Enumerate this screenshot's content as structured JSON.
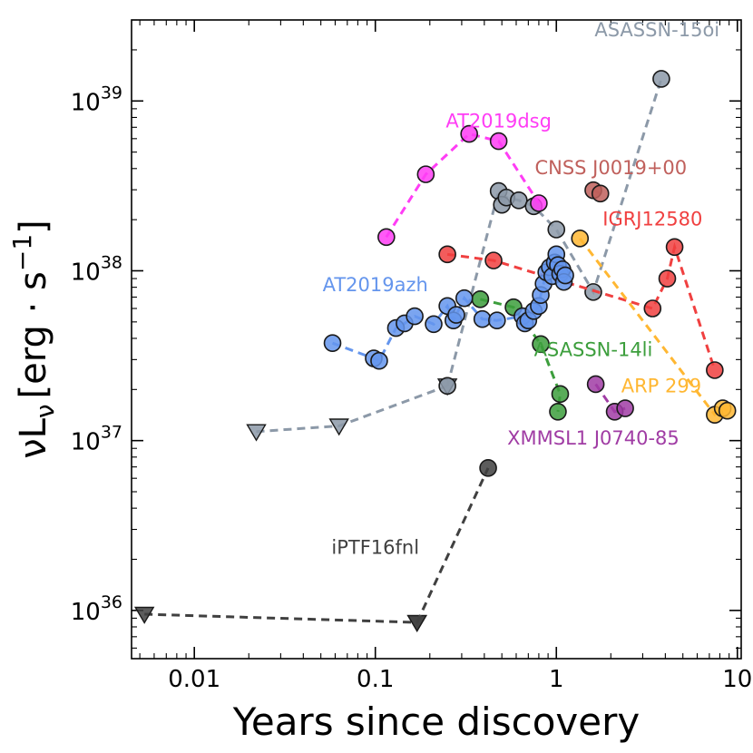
{
  "chart_data": {
    "type": "scatter",
    "xscale": "log",
    "yscale": "log",
    "xlim": [
      0.0045,
      10.5
    ],
    "ylim": [
      5.2e+35,
      3e+39
    ],
    "xlabel": "Years since discovery",
    "ylabel_text": "νL",
    "ylabel_sub": "ν",
    "ylabel_unit": "[erg · s",
    "ylabel_exp": "−1",
    "ylabel_close": "]",
    "x_ticks": [
      {
        "value": 0.01,
        "label": "0.01"
      },
      {
        "value": 0.1,
        "label": "0.1"
      },
      {
        "value": 1,
        "label": "1"
      },
      {
        "value": 10,
        "label": "10"
      }
    ],
    "y_ticks": [
      {
        "value": 1e+36,
        "base": "10",
        "exp": "36"
      },
      {
        "value": 1e+37,
        "base": "10",
        "exp": "37"
      },
      {
        "value": 1e+38,
        "base": "10",
        "exp": "38"
      },
      {
        "value": 1e+39,
        "base": "10",
        "exp": "39"
      }
    ],
    "series": [
      {
        "name": "ASASSN-15oi",
        "color": "#8c99a8",
        "label_anchor": [
          3.6,
          2.4e+39
        ],
        "segments": [
          {
            "marker": "triangle",
            "points": [
              [
                0.022,
                1.13e+37
              ],
              [
                0.063,
                1.22e+37
              ],
              [
                0.25,
                2.1e+37
              ]
            ]
          },
          {
            "marker": "circle",
            "points": [
              [
                0.25,
                2.1e+37
              ],
              [
                0.48,
                2.95e+38
              ],
              [
                0.5,
                2.45e+38
              ],
              [
                0.53,
                2.7e+38
              ],
              [
                0.62,
                2.6e+38
              ],
              [
                0.75,
                2.4e+38
              ],
              [
                1.0,
                1.75e+38
              ],
              [
                1.6,
                7.5e+37
              ],
              [
                3.8,
                1.35e+39
              ]
            ]
          }
        ]
      },
      {
        "name": "AT2019dsg",
        "color": "#ff3df5",
        "label_anchor": [
          0.48,
          7e+38
        ],
        "segments": [
          {
            "marker": "circle",
            "points": [
              [
                0.115,
                1.58e+38
              ],
              [
                0.19,
                3.7e+38
              ],
              [
                0.33,
                6.4e+38
              ],
              [
                0.48,
                5.8e+38
              ],
              [
                0.8,
                2.5e+38
              ]
            ]
          }
        ]
      },
      {
        "name": "CNSS J0019+00",
        "color": "#c0605c",
        "label_anchor": [
          2.0,
          3.7e+38
        ],
        "segments": [
          {
            "marker": "circle",
            "points": [
              [
                1.6,
                2.98e+38
              ],
              [
                1.75,
                2.85e+38
              ]
            ]
          }
        ]
      },
      {
        "name": "IGRJ12580",
        "color": "#f04040",
        "label_anchor": [
          3.4,
          1.85e+38
        ],
        "segments": [
          {
            "marker": "circle",
            "points": [
              [
                0.25,
                1.25e+38
              ],
              [
                0.45,
                1.15e+38
              ],
              [
                3.4,
                6e+37
              ],
              [
                4.1,
                9e+37
              ],
              [
                4.5,
                1.38e+38
              ],
              [
                7.5,
                2.6e+37
              ]
            ]
          }
        ]
      },
      {
        "name": "ASASSN-14li",
        "color": "#3c9e3c",
        "label_anchor": [
          1.6,
          3.15e+37
        ],
        "segments": [
          {
            "marker": "circle",
            "points": [
              [
                0.38,
                6.8e+37
              ],
              [
                0.58,
                6.1e+37
              ],
              [
                0.82,
                3.7e+37
              ],
              [
                1.05,
                1.88e+37
              ],
              [
                1.02,
                1.48e+37
              ]
            ]
          }
        ]
      },
      {
        "name": "ARP 299",
        "color": "#ffb732",
        "label_anchor": [
          3.8,
          1.92e+37
        ],
        "segments": [
          {
            "marker": "circle",
            "points": [
              [
                1.35,
                1.55e+38
              ],
              [
                7.5,
                1.42e+37
              ],
              [
                8.3,
                1.55e+37
              ],
              [
                8.8,
                1.5e+37
              ]
            ]
          }
        ]
      },
      {
        "name": "XMMSL1 J0740-85",
        "color": "#a03ca4",
        "label_anchor": [
          1.6,
          9.5e+36
        ],
        "segments": [
          {
            "marker": "circle",
            "points": [
              [
                1.65,
                2.15e+37
              ],
              [
                2.1,
                1.48e+37
              ],
              [
                2.4,
                1.55e+37
              ]
            ]
          }
        ]
      },
      {
        "name": "iPTF16fnl",
        "color": "#404040",
        "label_anchor": [
          0.1,
          2.15e+36
        ],
        "segments": [
          {
            "marker": "triangle",
            "points": [
              [
                0.0053,
                9.5e+35
              ],
              [
                0.17,
                8.5e+35
              ]
            ]
          },
          {
            "marker": "triangle_nodash",
            "points": [
              [
                0.17,
                8.5e+35
              ]
            ]
          },
          {
            "marker": "line_only",
            "points": [
              [
                0.17,
                8.5e+35
              ],
              [
                0.42,
                6.9e+36
              ]
            ]
          },
          {
            "marker": "circle_only",
            "points": [
              [
                0.42,
                6.9e+36
              ]
            ]
          }
        ]
      },
      {
        "name": "AT2019azh",
        "color": "#6495ed",
        "label_anchor": [
          0.1,
          7.6e+37
        ],
        "label_size": "big",
        "segments": [
          {
            "marker": "circle",
            "points": [
              [
                0.058,
                3.75e+37
              ],
              [
                0.098,
                3.05e+37
              ],
              [
                0.105,
                2.95e+37
              ],
              [
                0.13,
                4.6e+37
              ],
              [
                0.145,
                4.9e+37
              ],
              [
                0.165,
                5.4e+37
              ],
              [
                0.21,
                4.85e+37
              ],
              [
                0.25,
                6.2e+37
              ],
              [
                0.27,
                5.1e+37
              ],
              [
                0.28,
                5.5e+37
              ],
              [
                0.31,
                6.9e+37
              ],
              [
                0.39,
                5.2e+37
              ],
              [
                0.47,
                5.1e+37
              ],
              [
                0.65,
                5.4e+37
              ],
              [
                0.67,
                4.9e+37
              ],
              [
                0.7,
                5.1e+37
              ],
              [
                0.75,
                5.8e+37
              ],
              [
                0.8,
                6.2e+37
              ],
              [
                0.82,
                7.2e+37
              ],
              [
                0.85,
                8.4e+37
              ],
              [
                0.88,
                9.8e+37
              ],
              [
                0.92,
                1.05e+38
              ],
              [
                0.95,
                9.3e+37
              ],
              [
                0.98,
                1.12e+38
              ],
              [
                1.0,
                1.25e+38
              ],
              [
                1.02,
                1.08e+38
              ],
              [
                1.05,
                9.6e+37
              ],
              [
                1.08,
                1.02e+38
              ],
              [
                1.1,
                8.6e+37
              ],
              [
                1.12,
                9.4e+37
              ]
            ]
          }
        ]
      }
    ]
  }
}
